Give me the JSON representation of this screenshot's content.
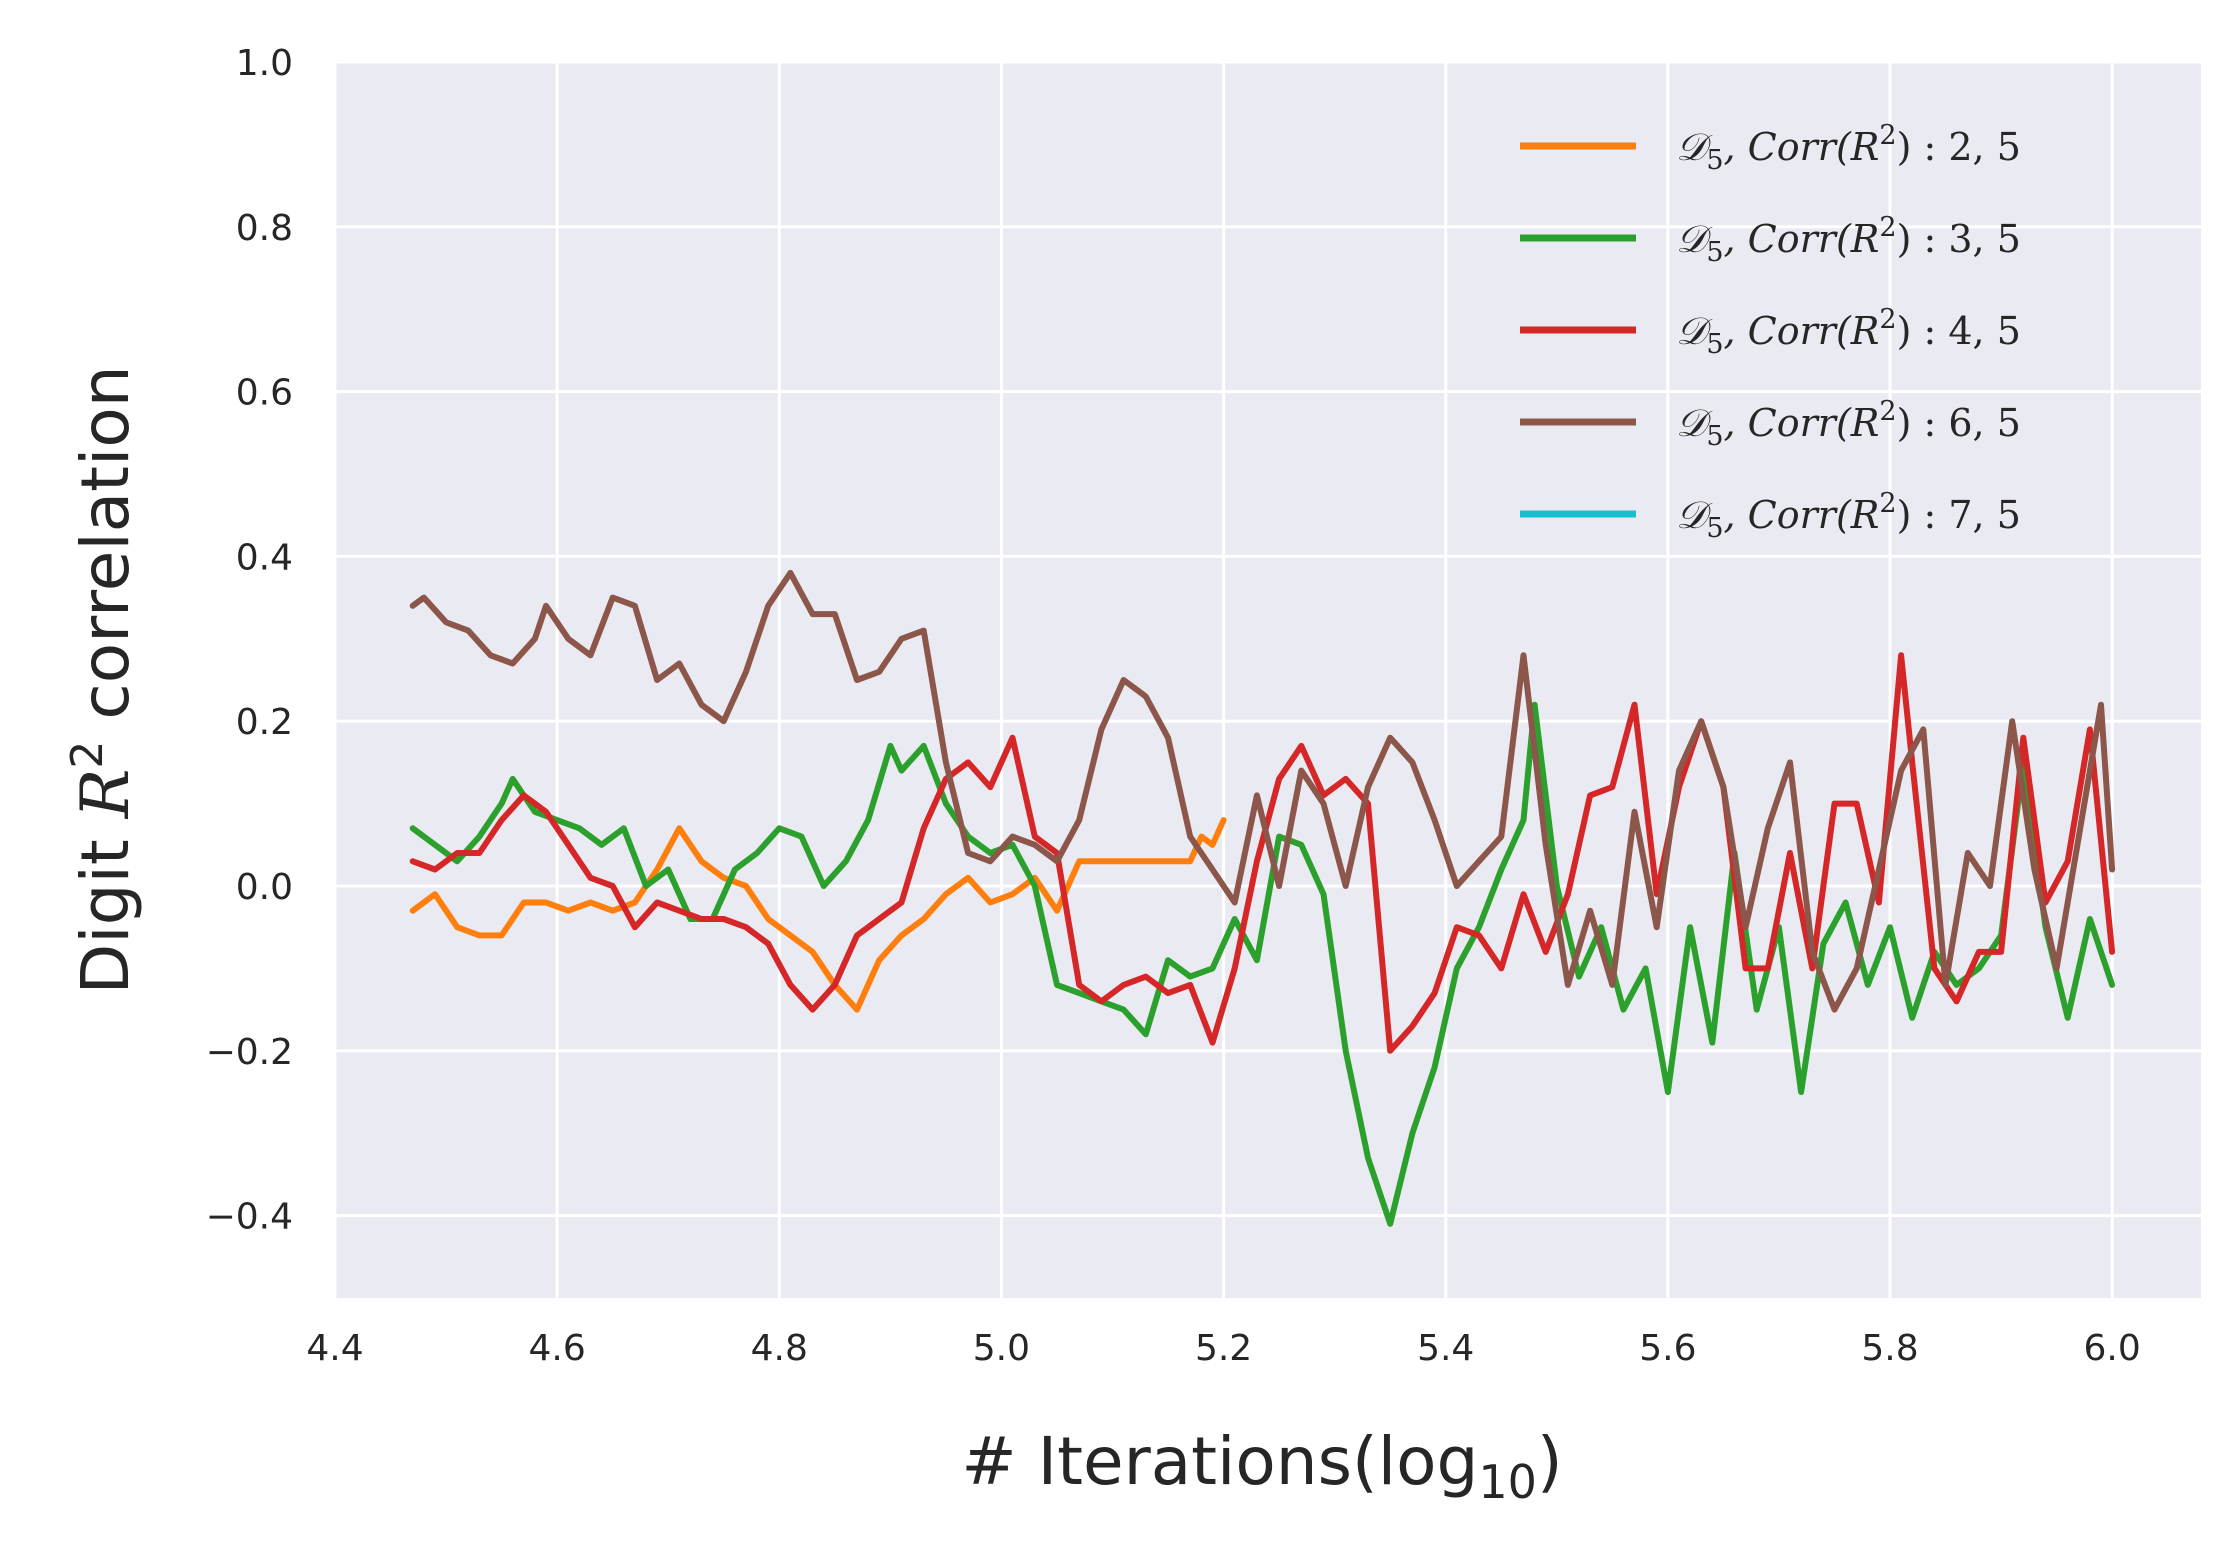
{
  "chart_data": {
    "type": "line",
    "xlabel": "# Iterations(log",
    "xlabel_sub": "10",
    "xlabel_tail": ")",
    "ylabel_pre": "Digit ",
    "ylabel_var": "R",
    "ylabel_sup": "2",
    "ylabel_post": " correlation",
    "xlim": [
      4.4,
      6.08
    ],
    "ylim": [
      -0.5,
      1.0
    ],
    "xticks": [
      4.4,
      4.6,
      4.8,
      5.0,
      5.2,
      5.4,
      5.6,
      5.8,
      6.0
    ],
    "xtick_labels": [
      "4.4",
      "4.6",
      "4.8",
      "5.0",
      "5.2",
      "5.4",
      "5.6",
      "5.8",
      "6.0"
    ],
    "yticks": [
      -0.4,
      -0.2,
      0.0,
      0.2,
      0.4,
      0.6,
      0.8,
      1.0
    ],
    "ytick_labels": [
      "−0.4",
      "−0.2",
      "0.0",
      "0.2",
      "0.4",
      "0.6",
      "0.8",
      "1.0"
    ],
    "grid": true,
    "background": "#eaeaf2",
    "legend_position": "upper-right",
    "series": [
      {
        "name": "𝒟5, Corr(R2) : 2, 5",
        "legend": {
          "d": "𝒟",
          "sub": "5",
          "mid": ", Corr(R",
          "sup": "2",
          "tail": ") : 2, 5"
        },
        "color": "#ff7f0e",
        "x": [
          4.47,
          4.49,
          4.51,
          4.53,
          4.55,
          4.57,
          4.59,
          4.61,
          4.63,
          4.65,
          4.67,
          4.69,
          4.71,
          4.73,
          4.75,
          4.77,
          4.79,
          4.81,
          4.83,
          4.85,
          4.87,
          4.89,
          4.91,
          4.93,
          4.95,
          4.97,
          4.99,
          5.01,
          5.03,
          5.05,
          5.07,
          5.17,
          5.18,
          5.19,
          5.2
        ],
        "y": [
          -0.03,
          -0.01,
          -0.05,
          -0.06,
          -0.06,
          -0.02,
          -0.02,
          -0.03,
          -0.02,
          -0.03,
          -0.02,
          0.02,
          0.07,
          0.03,
          0.01,
          0.0,
          -0.04,
          -0.06,
          -0.08,
          -0.12,
          -0.15,
          -0.09,
          -0.06,
          -0.04,
          -0.01,
          0.01,
          -0.02,
          -0.01,
          0.01,
          -0.03,
          0.03,
          0.03,
          0.06,
          0.05,
          0.08
        ]
      },
      {
        "name": "𝒟5, Corr(R2) : 3, 5",
        "legend": {
          "d": "𝒟",
          "sub": "5",
          "mid": ", Corr(R",
          "sup": "2",
          "tail": ") : 3, 5"
        },
        "color": "#2ca02c",
        "x": [
          4.47,
          4.49,
          4.51,
          4.53,
          4.55,
          4.56,
          4.58,
          4.6,
          4.62,
          4.64,
          4.66,
          4.68,
          4.7,
          4.72,
          4.74,
          4.76,
          4.78,
          4.8,
          4.82,
          4.84,
          4.86,
          4.88,
          4.9,
          4.91,
          4.93,
          4.95,
          4.97,
          4.99,
          5.01,
          5.03,
          5.05,
          5.07,
          5.09,
          5.11,
          5.13,
          5.15,
          5.17,
          5.19,
          5.21,
          5.23,
          5.25,
          5.27,
          5.29,
          5.31,
          5.33,
          5.35,
          5.37,
          5.39,
          5.41,
          5.43,
          5.45,
          5.47,
          5.48,
          5.5,
          5.52,
          5.54,
          5.56,
          5.58,
          5.6,
          5.62,
          5.64,
          5.66,
          5.68,
          5.7,
          5.72,
          5.74,
          5.76,
          5.78,
          5.8,
          5.82,
          5.84,
          5.86,
          5.88,
          5.9,
          5.92,
          5.94,
          5.96,
          5.98,
          6.0
        ],
        "y": [
          0.07,
          0.05,
          0.03,
          0.06,
          0.1,
          0.13,
          0.09,
          0.08,
          0.07,
          0.05,
          0.07,
          0.0,
          0.02,
          -0.04,
          -0.04,
          0.02,
          0.04,
          0.07,
          0.06,
          0.0,
          0.03,
          0.08,
          0.17,
          0.14,
          0.17,
          0.1,
          0.06,
          0.04,
          0.05,
          0.0,
          -0.12,
          -0.13,
          -0.14,
          -0.15,
          -0.18,
          -0.09,
          -0.11,
          -0.1,
          -0.04,
          -0.09,
          0.06,
          0.05,
          -0.01,
          -0.2,
          -0.33,
          -0.41,
          -0.3,
          -0.22,
          -0.1,
          -0.05,
          0.02,
          0.08,
          0.22,
          0.0,
          -0.11,
          -0.05,
          -0.15,
          -0.1,
          -0.25,
          -0.05,
          -0.19,
          0.04,
          -0.15,
          -0.05,
          -0.25,
          -0.07,
          -0.02,
          -0.12,
          -0.05,
          -0.16,
          -0.08,
          -0.12,
          -0.1,
          -0.06,
          0.15,
          -0.05,
          -0.16,
          -0.04,
          -0.12
        ]
      },
      {
        "name": "𝒟5, Corr(R2) : 4, 5",
        "legend": {
          "d": "𝒟",
          "sub": "5",
          "mid": ", Corr(R",
          "sup": "2",
          "tail": ") : 4, 5"
        },
        "color": "#d62728",
        "x": [
          4.47,
          4.49,
          4.51,
          4.53,
          4.55,
          4.57,
          4.59,
          4.61,
          4.63,
          4.65,
          4.67,
          4.69,
          4.71,
          4.73,
          4.75,
          4.77,
          4.79,
          4.81,
          4.83,
          4.85,
          4.87,
          4.89,
          4.91,
          4.93,
          4.95,
          4.97,
          4.99,
          5.01,
          5.03,
          5.05,
          5.07,
          5.09,
          5.11,
          5.13,
          5.15,
          5.17,
          5.19,
          5.21,
          5.23,
          5.25,
          5.27,
          5.29,
          5.31,
          5.33,
          5.35,
          5.37,
          5.39,
          5.41,
          5.43,
          5.45,
          5.47,
          5.49,
          5.51,
          5.53,
          5.55,
          5.57,
          5.59,
          5.61,
          5.63,
          5.65,
          5.67,
          5.69,
          5.71,
          5.73,
          5.75,
          5.77,
          5.79,
          5.81,
          5.82,
          5.84,
          5.86,
          5.88,
          5.9,
          5.92,
          5.94,
          5.96,
          5.98,
          6.0
        ],
        "y": [
          0.03,
          0.02,
          0.04,
          0.04,
          0.08,
          0.11,
          0.09,
          0.05,
          0.01,
          0.0,
          -0.05,
          -0.02,
          -0.03,
          -0.04,
          -0.04,
          -0.05,
          -0.07,
          -0.12,
          -0.15,
          -0.12,
          -0.06,
          -0.04,
          -0.02,
          0.07,
          0.13,
          0.15,
          0.12,
          0.18,
          0.06,
          0.04,
          -0.12,
          -0.14,
          -0.12,
          -0.11,
          -0.13,
          -0.12,
          -0.19,
          -0.1,
          0.03,
          0.13,
          0.17,
          0.11,
          0.13,
          0.1,
          -0.2,
          -0.17,
          -0.13,
          -0.05,
          -0.06,
          -0.1,
          -0.01,
          -0.08,
          -0.01,
          0.11,
          0.12,
          0.22,
          -0.01,
          0.12,
          0.2,
          0.12,
          -0.1,
          -0.1,
          0.04,
          -0.1,
          0.1,
          0.1,
          -0.02,
          0.28,
          0.15,
          -0.1,
          -0.14,
          -0.08,
          -0.08,
          0.18,
          -0.02,
          0.03,
          0.19,
          -0.08
        ]
      },
      {
        "name": "𝒟5, Corr(R2) : 6, 5",
        "legend": {
          "d": "𝒟",
          "sub": "5",
          "mid": ", Corr(R",
          "sup": "2",
          "tail": ") : 6, 5"
        },
        "color": "#8c564b",
        "x": [
          4.47,
          4.48,
          4.5,
          4.52,
          4.54,
          4.56,
          4.58,
          4.59,
          4.61,
          4.63,
          4.65,
          4.67,
          4.69,
          4.71,
          4.73,
          4.75,
          4.77,
          4.79,
          4.81,
          4.83,
          4.85,
          4.87,
          4.89,
          4.91,
          4.93,
          4.95,
          4.97,
          4.99,
          5.01,
          5.03,
          5.05,
          5.07,
          5.09,
          5.11,
          5.13,
          5.15,
          5.17,
          5.19,
          5.21,
          5.23,
          5.25,
          5.27,
          5.29,
          5.31,
          5.33,
          5.35,
          5.37,
          5.39,
          5.41,
          5.43,
          5.45,
          5.47,
          5.49,
          5.51,
          5.53,
          5.55,
          5.57,
          5.59,
          5.61,
          5.63,
          5.65,
          5.67,
          5.69,
          5.71,
          5.73,
          5.75,
          5.77,
          5.79,
          5.81,
          5.83,
          5.85,
          5.87,
          5.89,
          5.91,
          5.93,
          5.95,
          5.97,
          5.99,
          6.0
        ],
        "y": [
          0.34,
          0.35,
          0.32,
          0.31,
          0.28,
          0.27,
          0.3,
          0.34,
          0.3,
          0.28,
          0.35,
          0.34,
          0.25,
          0.27,
          0.22,
          0.2,
          0.26,
          0.34,
          0.38,
          0.33,
          0.33,
          0.25,
          0.26,
          0.3,
          0.31,
          0.15,
          0.04,
          0.03,
          0.06,
          0.05,
          0.03,
          0.08,
          0.19,
          0.25,
          0.23,
          0.18,
          0.06,
          0.02,
          -0.02,
          0.11,
          0.0,
          0.14,
          0.1,
          0.0,
          0.12,
          0.18,
          0.15,
          0.08,
          0.0,
          0.03,
          0.06,
          0.28,
          0.05,
          -0.12,
          -0.03,
          -0.12,
          0.09,
          -0.05,
          0.14,
          0.2,
          0.12,
          -0.05,
          0.07,
          0.15,
          -0.08,
          -0.15,
          -0.1,
          0.02,
          0.14,
          0.19,
          -0.12,
          0.04,
          0.0,
          0.2,
          0.02,
          -0.1,
          0.06,
          0.22,
          0.02
        ]
      },
      {
        "name": "𝒟5, Corr(R2) : 7, 5",
        "legend": {
          "d": "𝒟",
          "sub": "5",
          "mid": ", Corr(R",
          "sup": "2",
          "tail": ") : 7, 5"
        },
        "color": "#17becf",
        "x": [],
        "y": []
      }
    ]
  }
}
